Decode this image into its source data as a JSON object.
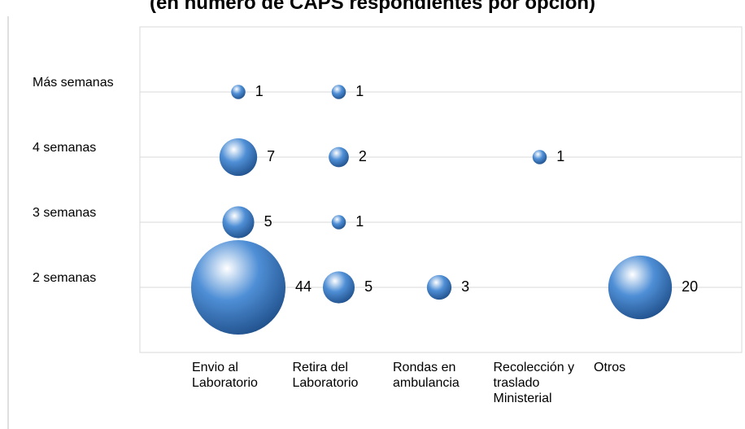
{
  "chart_data": {
    "type": "bubble",
    "title": "(en número de CAPS respondientes por opción)",
    "categories": [
      "Envio al Laboratorio",
      "Retira del Laboratorio",
      "Rondas en ambulancia",
      "Recolección y traslado Ministerial",
      "Otros"
    ],
    "y_categories": [
      "2 semanas",
      "3 semanas",
      "4 semanas",
      "Más semanas"
    ],
    "color": "#4f8fd6",
    "grid": true,
    "series": [
      {
        "name": "2 semanas",
        "values": [
          44,
          5,
          3,
          null,
          20
        ]
      },
      {
        "name": "3 semanas",
        "values": [
          5,
          1,
          null,
          null,
          null
        ]
      },
      {
        "name": "4 semanas",
        "values": [
          7,
          2,
          null,
          1,
          null
        ]
      },
      {
        "name": "Más semanas",
        "values": [
          1,
          1,
          null,
          null,
          null
        ]
      }
    ]
  }
}
